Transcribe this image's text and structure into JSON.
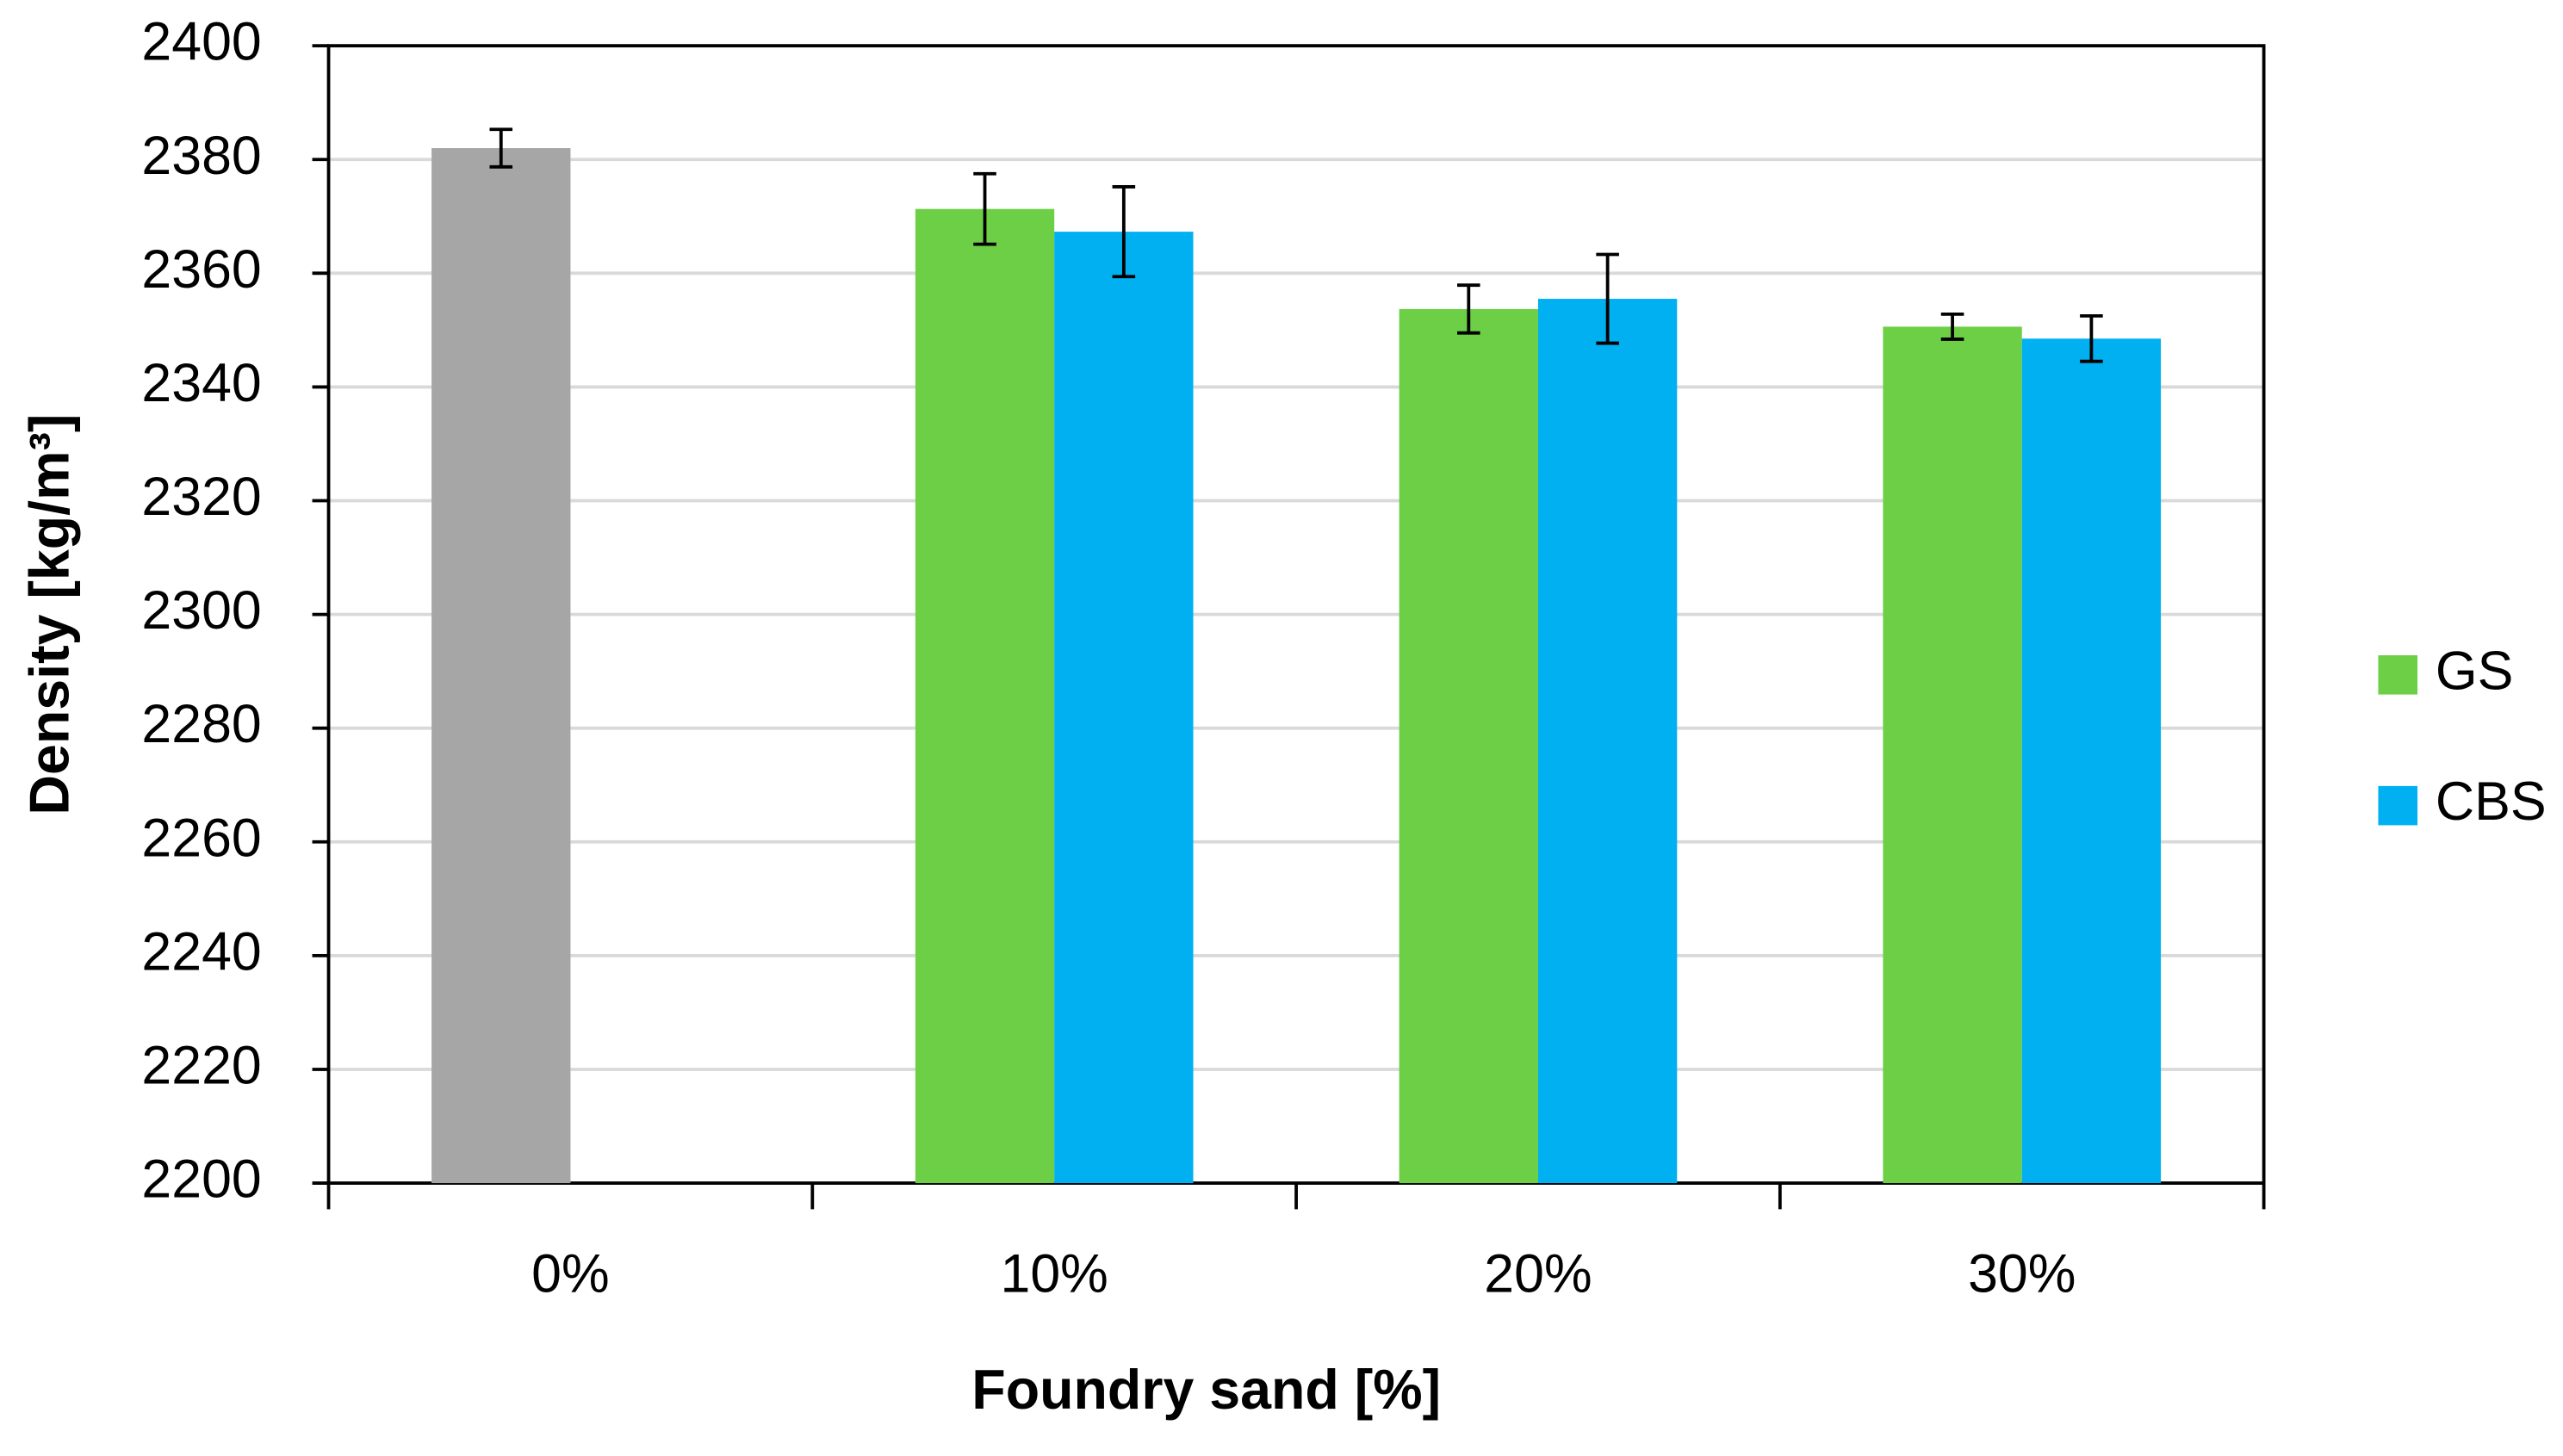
{
  "chart_data": {
    "type": "bar",
    "x_label": "Foundry sand [%]",
    "y_label": "Density [kg/m³]",
    "categories": [
      "0%",
      "10%",
      "20%",
      "30%"
    ],
    "series": [
      {
        "color": "#a6a6a6",
        "values": [
          2382,
          null,
          null,
          null
        ],
        "errors": [
          3.3,
          null,
          null,
          null
        ]
      },
      {
        "name": "GS",
        "color": "#6ccf45",
        "values": [
          null,
          2371.3,
          2353.7,
          2350.6
        ],
        "errors": [
          null,
          6.2,
          4.2,
          2.2
        ]
      },
      {
        "name": "CBS",
        "color": "#00b0f0",
        "values": [
          null,
          2367.3,
          2355.5,
          2348.5
        ],
        "errors": [
          null,
          7.9,
          7.8,
          4
        ]
      }
    ],
    "ylim": [
      2200,
      2400
    ],
    "yticks": [
      2200,
      2220,
      2240,
      2260,
      2280,
      2300,
      2320,
      2340,
      2360,
      2380,
      2400
    ],
    "grid": true,
    "legend": "right"
  }
}
